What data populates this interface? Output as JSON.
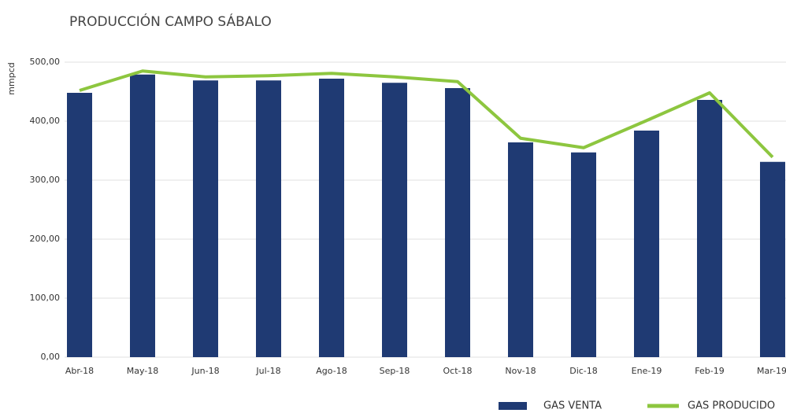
{
  "chart_data": {
    "type": "bar-line",
    "title": "PRODUCCIÓN CAMPO SÁBALO",
    "y_label": "mmpcd",
    "categories": [
      "Abr-18",
      "May-18",
      "Jun-18",
      "Jul-18",
      "Ago-18",
      "Sep-18",
      "Oct-18",
      "Nov-18",
      "Dic-18",
      "Ene-19",
      "Feb-19",
      "Mar-19"
    ],
    "series": [
      {
        "name": "GAS VENTA",
        "type": "bar",
        "color": "#1f3a73",
        "values": [
          448,
          479,
          469,
          469,
          472,
          465,
          456,
          364,
          347,
          384,
          436,
          331
        ]
      },
      {
        "name": "GAS PRODUCIDO",
        "type": "line",
        "color": "#8dc63f",
        "values": [
          452,
          485,
          475,
          477,
          481,
          475,
          467,
          371,
          355,
          401,
          448,
          339
        ]
      }
    ],
    "ylim": [
      0,
      500
    ],
    "yticks": [
      {
        "value": 0,
        "label": "0,00"
      },
      {
        "value": 100,
        "label": "100,00"
      },
      {
        "value": 200,
        "label": "200,00"
      },
      {
        "value": 300,
        "label": "300,00"
      },
      {
        "value": 400,
        "label": "400,00"
      },
      {
        "value": 500,
        "label": "500,00"
      }
    ],
    "grid": true,
    "legend": "bottom-right"
  }
}
